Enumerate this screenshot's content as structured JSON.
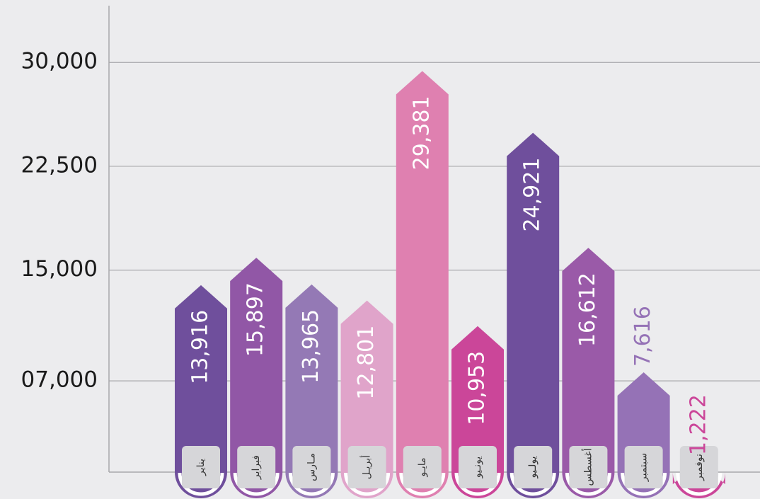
{
  "chart_data": {
    "type": "bar",
    "categories": [
      "يناير",
      "فبراير",
      "مـارس",
      "أبريـل",
      "مايـو",
      "يونـيو",
      "يولـيو",
      "أغسطس",
      "سبتمبر",
      "نوفمبر"
    ],
    "values": [
      13916,
      15897,
      13965,
      12801,
      29381,
      10953,
      24921,
      16612,
      7616,
      1222
    ],
    "value_labels": [
      "13,916",
      "15,897",
      "13,965",
      "12,801",
      "29,381",
      "10,953",
      "24,921",
      "16,612",
      "7,616",
      "1,222"
    ],
    "colors": [
      "#6f4f9c",
      "#9157a6",
      "#9479b5",
      "#e0a4ca",
      "#df80b0",
      "#cb4699",
      "#6f4f9c",
      "#9a5aa8",
      "#9572b6",
      "#cb4699"
    ],
    "ylim": [
      0,
      34000
    ],
    "yticks": [
      {
        "value": 7000,
        "label": "07,000"
      },
      {
        "value": 15000,
        "label": "15,000"
      },
      {
        "value": 22500,
        "label": "22,500"
      },
      {
        "value": 30000,
        "label": "30,000"
      }
    ],
    "grid": true
  }
}
